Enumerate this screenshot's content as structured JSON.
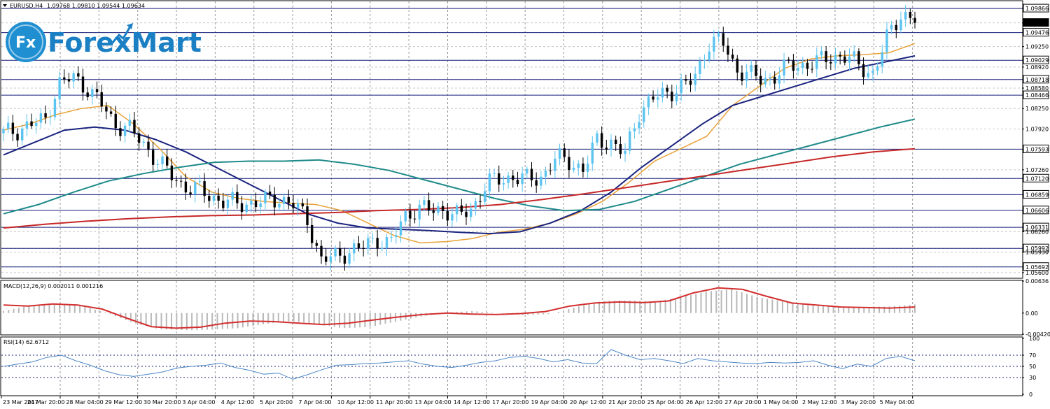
{
  "main_header": {
    "symbol": "EURUSD,H4",
    "ohlc": "1.09768 1.09810 1.09544 1.09634"
  },
  "logo": {
    "badge": "Fx",
    "brand": "ForexMart",
    "color_fill": "#1f8fd1",
    "color_text": "#1b7fc4"
  },
  "macd_header": "MACD(12,26,9) 0.002011 0.001216",
  "rsi_header": "RSI(14) 62.6712",
  "colors": {
    "bull": "#5cc4f0",
    "bear": "#000000",
    "ma_fast": "#e8a23a",
    "ma_mid": "#1a237e",
    "ma_slow": "#1f8a8a",
    "ma_long": "#c62828",
    "hline": "#1a237e",
    "macd_hist": "#b8b8b8",
    "macd_signal": "#d32f2f",
    "rsi_line": "#4a86c5",
    "grid": "#999999"
  },
  "chart_data": [
    {
      "type": "candlestick",
      "title": "EURUSD,H4",
      "ylim": [
        1.0552,
        1.0998
      ],
      "yticks": [
        "1.09866",
        "1.09634",
        "1.09476",
        "1.09250",
        "1.09029",
        "1.08920",
        "1.08718",
        "1.08580",
        "1.08466",
        "1.08250",
        "1.07920",
        "1.07593",
        "1.07260",
        "1.07120",
        "1.06859",
        "1.06606",
        "1.06331",
        "1.06260",
        "1.05992",
        "1.05930",
        "1.05692",
        "1.05600"
      ],
      "highlighted_levels": [
        1.09866,
        1.09476,
        1.09029,
        1.08718,
        1.08466,
        1.07593,
        1.0712,
        1.06859,
        1.06606,
        1.06331,
        1.05992,
        1.05692
      ],
      "current_price": 1.09634,
      "x_labels": [
        "23 Mar 2017",
        "24 Mar 20:00",
        "28 Mar 04:00",
        "29 Mar 12:00",
        "30 Mar 20:00",
        "3 Apr 04:00",
        "4 Apr 12:00",
        "5 Apr 20:00",
        "7 Apr 04:00",
        "10 Apr 12:00",
        "11 Apr 20:00",
        "13 Apr 04:00",
        "14 Apr 12:00",
        "17 Apr 20:00",
        "19 Apr 04:00",
        "20 Apr 12:00",
        "21 Apr 20:00",
        "25 Apr 04:00",
        "26 Apr 12:00",
        "27 Apr 20:00",
        "1 May 04:00",
        "2 May 12:00",
        "3 May 20:00",
        "5 May 04:00"
      ],
      "anchors": [
        1.0785,
        1.079,
        1.08,
        1.0805,
        1.0865,
        1.0875,
        1.086,
        1.0835,
        1.08,
        1.0795,
        1.077,
        1.0745,
        1.072,
        1.07,
        1.0695,
        1.0683,
        1.0675,
        1.067,
        1.0673,
        1.0675,
        1.068,
        1.067,
        1.0645,
        1.058,
        1.0585,
        1.0595,
        1.06,
        1.0615,
        1.0605,
        1.065,
        1.0665,
        1.066,
        1.0662,
        1.065,
        1.0665,
        1.0705,
        1.071,
        1.0715,
        1.071,
        1.0715,
        1.0745,
        1.074,
        1.0725,
        1.0775,
        1.077,
        1.075,
        1.082,
        1.084,
        1.085,
        1.086,
        1.087,
        1.093,
        1.0935,
        1.089,
        1.088,
        1.087,
        1.088,
        1.0895,
        1.0895,
        1.09,
        1.091,
        1.0908,
        1.0895,
        1.088,
        1.094,
        1.098,
        1.0963
      ],
      "series": [
        {
          "name": "MA fast",
          "values": [
            1.079,
            1.08,
            1.0815,
            1.0825,
            1.083,
            1.08,
            1.076,
            1.0715,
            1.069,
            1.068,
            1.0675,
            1.0672,
            1.067,
            1.066,
            1.064,
            1.062,
            1.0608,
            1.061,
            1.0615,
            1.0625,
            1.063,
            1.064,
            1.0655,
            1.0675,
            1.0705,
            1.074,
            1.076,
            1.078,
            1.083,
            1.086,
            1.089,
            1.0905,
            1.091,
            1.0912,
            1.0915,
            1.093
          ]
        },
        {
          "name": "MA mid",
          "values": [
            1.075,
            1.077,
            1.079,
            1.0795,
            1.079,
            1.0775,
            1.0755,
            1.073,
            1.0705,
            1.068,
            1.0655,
            1.064,
            1.0632,
            1.063,
            1.0628,
            1.0625,
            1.0623,
            1.0626,
            1.064,
            1.066,
            1.069,
            1.073,
            1.0765,
            1.08,
            1.083,
            1.0845,
            1.086,
            1.0875,
            1.089,
            1.09,
            1.091
          ]
        },
        {
          "name": "MA slow",
          "values": [
            1.0655,
            1.067,
            1.069,
            1.0708,
            1.072,
            1.073,
            1.0738,
            1.074,
            1.074,
            1.0742,
            1.0735,
            1.0725,
            1.071,
            1.0695,
            1.068,
            1.0668,
            1.066,
            1.0662,
            1.0675,
            1.0695,
            1.0715,
            1.0735,
            1.075,
            1.0765,
            1.078,
            1.0795,
            1.0808
          ]
        },
        {
          "name": "MA long",
          "values": [
            1.0632,
            1.0638,
            1.0643,
            1.0647,
            1.065,
            1.0652,
            1.0653,
            1.0655,
            1.0657,
            1.066,
            1.0662,
            1.0665,
            1.067,
            1.0678,
            1.0687,
            1.0697,
            1.0707,
            1.0717,
            1.0727,
            1.0737,
            1.0747,
            1.0755,
            1.076
          ]
        }
      ]
    },
    {
      "type": "bar",
      "title": "MACD(12,26,9) 0.002011 0.001216",
      "ylim": [
        -0.0042,
        0.00636
      ],
      "yticks": [
        "0.00636",
        "0.00",
        "-0.00420"
      ],
      "histogram": [
        0.0004,
        0.0015,
        0.0019,
        0.0014,
        0.0,
        -0.002,
        -0.0032,
        -0.0034,
        -0.0033,
        -0.003,
        -0.0022,
        -0.0016,
        -0.0021,
        -0.003,
        -0.0028,
        -0.0018,
        -0.0007,
        0.0001,
        0.0004,
        0.0,
        -0.0004,
        -0.0002,
        0.0012,
        0.0024,
        0.0025,
        0.0023,
        0.0031,
        0.0043,
        0.0047,
        0.0031,
        0.0023,
        0.0015,
        0.0012,
        0.0012,
        0.0013,
        0.0017
      ],
      "signal": [
        0.0016,
        0.0014,
        0.0018,
        0.0016,
        0.0008,
        -0.001,
        -0.0027,
        -0.003,
        -0.0028,
        -0.002,
        -0.0016,
        -0.0017,
        -0.002,
        -0.0023,
        -0.002,
        -0.0014,
        -0.0008,
        -0.0003,
        0.0,
        -0.0002,
        -0.0003,
        -0.0001,
        0.0003,
        0.0014,
        0.002,
        0.0022,
        0.0021,
        0.0024,
        0.004,
        0.005,
        0.0047,
        0.0033,
        0.002,
        0.0016,
        0.0012,
        0.0011,
        0.001,
        0.0012
      ]
    },
    {
      "type": "line",
      "title": "RSI(14) 62.6712",
      "ylim": [
        0,
        100
      ],
      "yticks": [
        "100",
        "70",
        "50",
        "30",
        "0"
      ],
      "levels": [
        70,
        50,
        30
      ],
      "values": [
        50,
        54,
        58,
        66,
        70,
        60,
        52,
        42,
        35,
        32,
        36,
        40,
        47,
        50,
        52,
        56,
        48,
        43,
        36,
        38,
        27,
        35,
        44,
        52,
        53,
        55,
        56,
        58,
        60,
        54,
        50,
        48,
        52,
        57,
        60,
        66,
        68,
        64,
        58,
        62,
        56,
        55,
        80,
        70,
        62,
        64,
        60,
        55,
        64,
        60,
        58,
        56,
        55,
        57,
        56,
        57,
        60,
        52,
        46,
        54,
        50,
        64,
        68,
        60
      ]
    }
  ]
}
